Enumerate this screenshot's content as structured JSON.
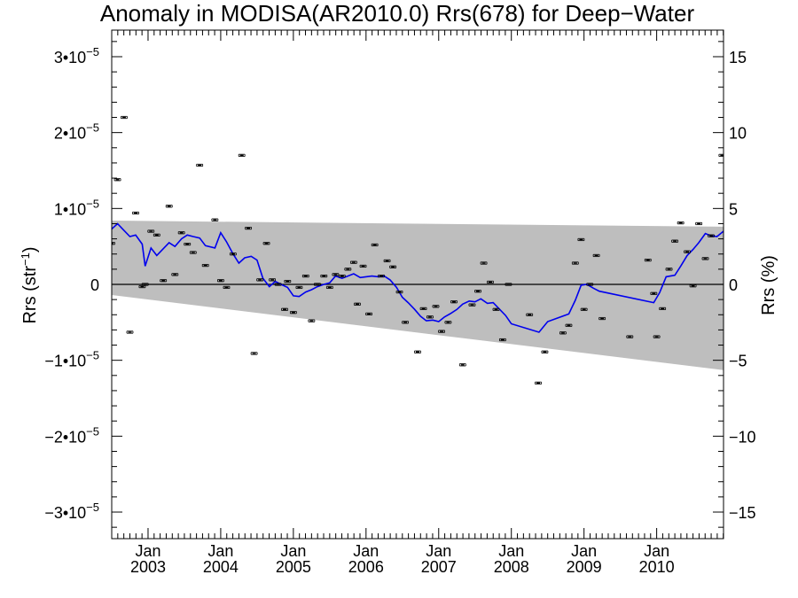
{
  "chart_data": {
    "type": "scatter",
    "title": "Anomaly in MODISA(AR2010.0) Rrs(678) for Deep−Water",
    "ylabel_left_base": "Rrs (str",
    "ylabel_left_exp": "−1",
    "ylabel_left_close": ")",
    "ylabel_right": "Rrs (%)",
    "x_tick_labels": [
      {
        "month": "Jan",
        "year": "2003",
        "x": 2003.0
      },
      {
        "month": "Jan",
        "year": "2004",
        "x": 2004.0
      },
      {
        "month": "Jan",
        "year": "2005",
        "x": 2005.0
      },
      {
        "month": "Jan",
        "year": "2006",
        "x": 2006.0
      },
      {
        "month": "Jan",
        "year": "2007",
        "x": 2007.0
      },
      {
        "month": "Jan",
        "year": "2008",
        "x": 2008.0
      },
      {
        "month": "Jan",
        "year": "2009",
        "x": 2009.0
      },
      {
        "month": "Jan",
        "year": "2010",
        "x": 2010.0
      }
    ],
    "xlim": [
      2002.5,
      2010.92
    ],
    "ylim_left": [
      -3.35e-05,
      3.35e-05
    ],
    "ylim_right": [
      -16.75,
      16.75
    ],
    "y_left_ticks": [
      {
        "value": 3e-05,
        "mant": "3•10",
        "exp": "−5"
      },
      {
        "value": 2e-05,
        "mant": "2•10",
        "exp": "−5"
      },
      {
        "value": 1e-05,
        "mant": "1•10",
        "exp": "−5"
      },
      {
        "value": 0,
        "mant": "0",
        "exp": ""
      },
      {
        "value": -1e-05,
        "mant": "−1•10",
        "exp": "−5"
      },
      {
        "value": -2e-05,
        "mant": "−2•10",
        "exp": "−5"
      },
      {
        "value": -3e-05,
        "mant": "−3•10",
        "exp": "−5"
      }
    ],
    "y_right_ticks": [
      {
        "value": 15,
        "label": "15"
      },
      {
        "value": 10,
        "label": "10"
      },
      {
        "value": 5,
        "label": "5"
      },
      {
        "value": 0,
        "label": "0"
      },
      {
        "value": -5,
        "label": "−5"
      },
      {
        "value": -10,
        "label": "−10"
      },
      {
        "value": -15,
        "label": "−15"
      }
    ],
    "uncertainty_band": {
      "color": "#bebebe",
      "upper": [
        [
          2002.5,
          8.4e-06
        ],
        [
          2010.92,
          7.6e-06
        ]
      ],
      "lower": [
        [
          2002.5,
          -1.4e-06
        ],
        [
          2010.92,
          -1.13e-05
        ]
      ]
    },
    "zero_line": true,
    "grid": false,
    "series": [
      {
        "kind": "points",
        "color": "#000000",
        "points": [
          [
            2002.5,
            5.4e-06
          ],
          [
            2002.58,
            1.38e-05
          ],
          [
            2002.67,
            2.2e-05
          ],
          [
            2002.75,
            -6.3e-06
          ],
          [
            2002.83,
            9.4e-06
          ],
          [
            2002.92,
            -3e-07
          ],
          [
            2002.96,
            0.0
          ],
          [
            2003.04,
            7e-06
          ],
          [
            2003.12,
            6.5e-06
          ],
          [
            2003.21,
            5e-07
          ],
          [
            2003.29,
            1.03e-05
          ],
          [
            2003.37,
            1.3e-06
          ],
          [
            2003.46,
            6.8e-06
          ],
          [
            2003.54,
            5.3e-06
          ],
          [
            2003.62,
            4.2e-06
          ],
          [
            2003.71,
            1.57e-05
          ],
          [
            2003.79,
            2.5e-06
          ],
          [
            2003.92,
            8.5e-06
          ],
          [
            2004.0,
            5e-07
          ],
          [
            2004.08,
            -4e-07
          ],
          [
            2004.17,
            4e-06
          ],
          [
            2004.29,
            1.7e-05
          ],
          [
            2004.38,
            7.4e-06
          ],
          [
            2004.46,
            -9.1e-06
          ],
          [
            2004.54,
            6e-07
          ],
          [
            2004.63,
            5.4e-06
          ],
          [
            2004.71,
            6e-07
          ],
          [
            2004.79,
            0.0
          ],
          [
            2004.88,
            -3.3e-06
          ],
          [
            2004.92,
            4e-07
          ],
          [
            2005.0,
            -3.7e-06
          ],
          [
            2005.08,
            -4e-07
          ],
          [
            2005.17,
            1.1e-06
          ],
          [
            2005.25,
            -4.8e-06
          ],
          [
            2005.33,
            0.0
          ],
          [
            2005.42,
            1.1e-06
          ],
          [
            2005.5,
            -4e-07
          ],
          [
            2005.58,
            1.3e-06
          ],
          [
            2005.67,
            1.1e-06
          ],
          [
            2005.75,
            2e-06
          ],
          [
            2005.83,
            2.9e-06
          ],
          [
            2005.88,
            -2.6e-06
          ],
          [
            2005.96,
            2.4e-06
          ],
          [
            2006.04,
            -3.9e-06
          ],
          [
            2006.12,
            5.2e-06
          ],
          [
            2006.21,
            1.1e-06
          ],
          [
            2006.29,
            3.1e-06
          ],
          [
            2006.37,
            2.3e-06
          ],
          [
            2006.46,
            -1e-06
          ],
          [
            2006.54,
            -5e-06
          ],
          [
            2006.71,
            -8.9e-06
          ],
          [
            2006.79,
            -3.2e-06
          ],
          [
            2006.88,
            -4.3e-06
          ],
          [
            2006.96,
            -2.9e-06
          ],
          [
            2007.04,
            -6.2e-06
          ],
          [
            2007.13,
            -5e-06
          ],
          [
            2007.21,
            -2.3e-06
          ],
          [
            2007.33,
            -1.06e-05
          ],
          [
            2007.46,
            -2.7e-06
          ],
          [
            2007.54,
            -9e-07
          ],
          [
            2007.62,
            2.8e-06
          ],
          [
            2007.71,
            3e-07
          ],
          [
            2007.79,
            -3.3e-06
          ],
          [
            2007.88,
            -7.3e-06
          ],
          [
            2007.96,
            0.0
          ],
          [
            2008.25,
            -4e-06
          ],
          [
            2008.37,
            -1.3e-05
          ],
          [
            2008.46,
            -8.9e-06
          ],
          [
            2008.71,
            -6.4e-06
          ],
          [
            2008.79,
            -5.4e-06
          ],
          [
            2008.88,
            2.8e-06
          ],
          [
            2008.96,
            5.9e-06
          ],
          [
            2009.0,
            -3.3e-06
          ],
          [
            2009.08,
            0.0
          ],
          [
            2009.17,
            3.8e-06
          ],
          [
            2009.25,
            -4.5e-06
          ],
          [
            2009.63,
            -6.9e-06
          ],
          [
            2009.88,
            3.2e-06
          ],
          [
            2009.96,
            -1.2e-06
          ],
          [
            2010.0,
            -6.9e-06
          ],
          [
            2010.08,
            -3.2e-06
          ],
          [
            2010.17,
            2e-06
          ],
          [
            2010.25,
            5.7e-06
          ],
          [
            2010.33,
            8.1e-06
          ],
          [
            2010.42,
            4.3e-06
          ],
          [
            2010.5,
            -2e-07
          ],
          [
            2010.58,
            8e-06
          ],
          [
            2010.67,
            3.4e-06
          ],
          [
            2010.75,
            6.4e-06
          ],
          [
            2010.9,
            1.7e-05
          ]
        ]
      },
      {
        "kind": "line",
        "color": "#0000ee",
        "points": [
          [
            2002.5,
            7.3e-06
          ],
          [
            2002.58,
            8e-06
          ],
          [
            2002.67,
            7.1e-06
          ],
          [
            2002.75,
            6.3e-06
          ],
          [
            2002.83,
            6.5e-06
          ],
          [
            2002.92,
            5.3e-06
          ],
          [
            2002.96,
            2.4e-06
          ],
          [
            2003.04,
            4.8e-06
          ],
          [
            2003.12,
            3.8e-06
          ],
          [
            2003.21,
            4.7e-06
          ],
          [
            2003.29,
            5.5e-06
          ],
          [
            2003.37,
            5e-06
          ],
          [
            2003.46,
            6e-06
          ],
          [
            2003.54,
            6.5e-06
          ],
          [
            2003.62,
            6.3e-06
          ],
          [
            2003.71,
            6.1e-06
          ],
          [
            2003.79,
            5.1e-06
          ],
          [
            2003.92,
            4.8e-06
          ],
          [
            2004.0,
            6.8e-06
          ],
          [
            2004.08,
            5.6e-06
          ],
          [
            2004.17,
            4e-06
          ],
          [
            2004.25,
            2.8e-06
          ],
          [
            2004.33,
            3.5e-06
          ],
          [
            2004.42,
            3.7e-06
          ],
          [
            2004.5,
            3.2e-06
          ],
          [
            2004.58,
            8e-07
          ],
          [
            2004.67,
            -3e-07
          ],
          [
            2004.75,
            4e-07
          ],
          [
            2004.83,
            0.0
          ],
          [
            2004.92,
            -4e-07
          ],
          [
            2005.0,
            -1.5e-06
          ],
          [
            2005.08,
            -1.6e-06
          ],
          [
            2005.17,
            -1e-06
          ],
          [
            2005.25,
            -7e-07
          ],
          [
            2005.33,
            -3e-07
          ],
          [
            2005.42,
            0.0
          ],
          [
            2005.5,
            2e-07
          ],
          [
            2005.58,
            1.1e-06
          ],
          [
            2005.67,
            8e-07
          ],
          [
            2005.75,
            1.1e-06
          ],
          [
            2005.83,
            1.4e-06
          ],
          [
            2005.92,
            9e-07
          ],
          [
            2006.0,
            1e-06
          ],
          [
            2006.08,
            1.1e-06
          ],
          [
            2006.17,
            1e-06
          ],
          [
            2006.25,
            1.1e-06
          ],
          [
            2006.33,
            6e-07
          ],
          [
            2006.42,
            -4e-07
          ],
          [
            2006.5,
            -1.7e-06
          ],
          [
            2006.58,
            -2.4e-06
          ],
          [
            2006.67,
            -3.3e-06
          ],
          [
            2006.75,
            -4.2e-06
          ],
          [
            2006.83,
            -4.8e-06
          ],
          [
            2006.92,
            -4.7e-06
          ],
          [
            2007.0,
            -4.9e-06
          ],
          [
            2007.08,
            -4.3e-06
          ],
          [
            2007.17,
            -3.8e-06
          ],
          [
            2007.25,
            -3.3e-06
          ],
          [
            2007.33,
            -2.6e-06
          ],
          [
            2007.42,
            -2.2e-06
          ],
          [
            2007.5,
            -2.3e-06
          ],
          [
            2007.58,
            -1.9e-06
          ],
          [
            2007.67,
            -2.5e-06
          ],
          [
            2007.75,
            -2.4e-06
          ],
          [
            2007.83,
            -3.2e-06
          ],
          [
            2007.92,
            -4.1e-06
          ],
          [
            2008.0,
            -5.2e-06
          ],
          [
            2008.38,
            -6.3e-06
          ],
          [
            2008.5,
            -4.9e-06
          ],
          [
            2008.79,
            -3.9e-06
          ],
          [
            2008.88,
            -2.1e-06
          ],
          [
            2008.96,
            -1e-07
          ],
          [
            2009.04,
            0.0
          ],
          [
            2009.13,
            -5e-07
          ],
          [
            2009.21,
            -9e-07
          ],
          [
            2009.96,
            -2.4e-06
          ],
          [
            2010.04,
            -1.1e-06
          ],
          [
            2010.13,
            1e-06
          ],
          [
            2010.25,
            1.2e-06
          ],
          [
            2010.33,
            2.4e-06
          ],
          [
            2010.42,
            3.8e-06
          ],
          [
            2010.5,
            4.6e-06
          ],
          [
            2010.58,
            5.5e-06
          ],
          [
            2010.67,
            6.7e-06
          ],
          [
            2010.75,
            6.4e-06
          ],
          [
            2010.83,
            6.3e-06
          ],
          [
            2010.92,
            7e-06
          ]
        ]
      }
    ]
  }
}
